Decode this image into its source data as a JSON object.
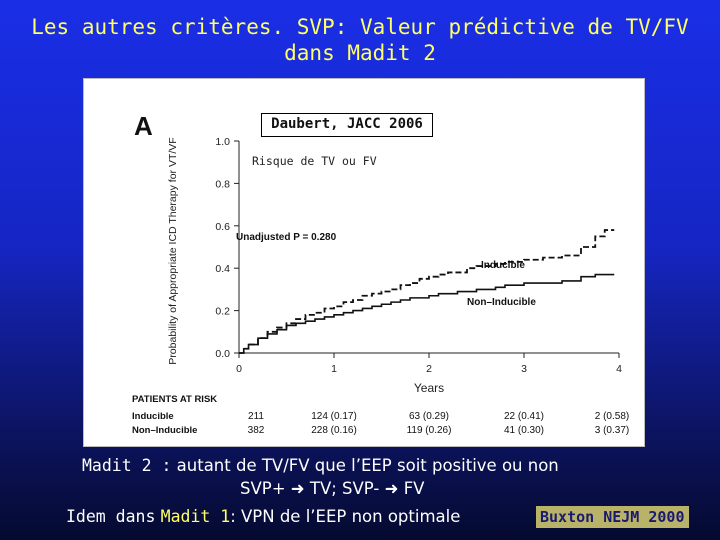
{
  "slide": {
    "title_line1": "Les autres critères. SVP: Valeur prédictive de TV/FV",
    "title_line2": "dans Madit 2",
    "ref_box": "Daubert, JACC 2006",
    "sublabel": "Risque de TV ou FV",
    "caption1_prefix": "Madit 2 :",
    "caption1_rest": "autant de TV/FV que l’EEP soit positive ou non",
    "caption2_a": "SVP+",
    "caption2_b": "TV; SVP-",
    "caption2_c": "FV",
    "caption3_a": "Idem dans",
    "caption3_b": "Madit 1",
    "caption3_c": ": VPN de l’EEP non optimale",
    "citation": "Buxton NEJM 2000",
    "colors": {
      "background": "#1a2ee6",
      "title": "#ffff66",
      "caption": "#ffffff",
      "citation_bg": "#b9b36a"
    }
  },
  "chart_data": {
    "type": "line",
    "panel_letter": "A",
    "ylabel": "Probability of Appropriate ICD Therapy for VT/VF",
    "xlabel": "Years",
    "xlim": [
      0,
      4
    ],
    "ylim": [
      0,
      1.0
    ],
    "x_ticks": [
      "0",
      "1",
      "2",
      "3",
      "4"
    ],
    "y_ticks": [
      "0.0",
      "0.2",
      "0.4",
      "0.6",
      "0.8",
      "1.0"
    ],
    "annotation": "Unadjusted P = 0.280",
    "series": [
      {
        "name": "Inducible",
        "style": "dashed",
        "x": [
          0,
          0.05,
          0.1,
          0.2,
          0.3,
          0.4,
          0.5,
          0.6,
          0.7,
          0.8,
          0.9,
          1.0,
          1.1,
          1.2,
          1.3,
          1.4,
          1.5,
          1.6,
          1.7,
          1.8,
          1.9,
          2.0,
          2.1,
          2.2,
          2.3,
          2.4,
          2.5,
          2.6,
          2.7,
          2.8,
          2.9,
          3.0,
          3.1,
          3.2,
          3.3,
          3.4,
          3.5,
          3.6,
          3.75,
          3.85,
          3.95
        ],
        "y": [
          0,
          0.02,
          0.04,
          0.07,
          0.1,
          0.12,
          0.14,
          0.16,
          0.18,
          0.19,
          0.21,
          0.22,
          0.24,
          0.25,
          0.27,
          0.28,
          0.29,
          0.3,
          0.32,
          0.33,
          0.35,
          0.36,
          0.37,
          0.38,
          0.38,
          0.4,
          0.41,
          0.41,
          0.42,
          0.43,
          0.43,
          0.44,
          0.44,
          0.45,
          0.45,
          0.46,
          0.46,
          0.5,
          0.55,
          0.58,
          0.58
        ]
      },
      {
        "name": "Non–Inducible",
        "style": "solid",
        "x": [
          0,
          0.05,
          0.1,
          0.2,
          0.3,
          0.4,
          0.5,
          0.6,
          0.7,
          0.8,
          0.9,
          1.0,
          1.1,
          1.2,
          1.3,
          1.4,
          1.5,
          1.6,
          1.7,
          1.8,
          1.9,
          2.0,
          2.1,
          2.2,
          2.3,
          2.4,
          2.5,
          2.6,
          2.7,
          2.8,
          2.9,
          3.0,
          3.1,
          3.2,
          3.3,
          3.4,
          3.5,
          3.6,
          3.75,
          3.85,
          3.95
        ],
        "y": [
          0,
          0.02,
          0.04,
          0.07,
          0.09,
          0.11,
          0.13,
          0.14,
          0.15,
          0.16,
          0.17,
          0.18,
          0.19,
          0.2,
          0.21,
          0.22,
          0.23,
          0.24,
          0.25,
          0.26,
          0.26,
          0.27,
          0.28,
          0.28,
          0.29,
          0.29,
          0.3,
          0.3,
          0.31,
          0.32,
          0.32,
          0.33,
          0.33,
          0.33,
          0.33,
          0.34,
          0.34,
          0.36,
          0.37,
          0.37,
          0.37
        ]
      }
    ],
    "risk_table": {
      "header": "PATIENTS AT RISK",
      "rows": [
        {
          "label": "Inducible",
          "n0": "211",
          "cells": [
            "124 (0.17)",
            "63 (0.29)",
            "22 (0.41)",
            "2 (0.58)"
          ]
        },
        {
          "label": "Non–Inducible",
          "n0": "382",
          "cells": [
            "228 (0.16)",
            "119 (0.26)",
            "41 (0.30)",
            "3 (0.37)"
          ]
        }
      ]
    }
  }
}
